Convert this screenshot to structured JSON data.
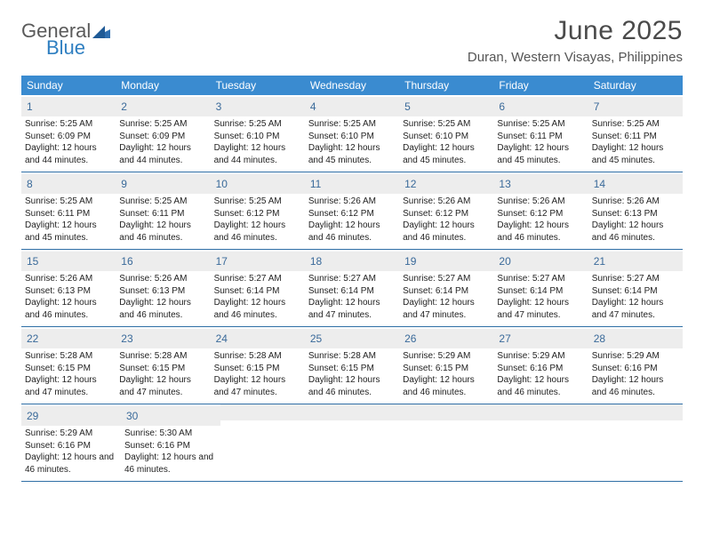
{
  "logo": {
    "text1": "General",
    "text2": "Blue"
  },
  "title": "June 2025",
  "location": "Duran, Western Visayas, Philippines",
  "colors": {
    "header_bg": "#3a8bd0",
    "daynum_bg": "#ededed",
    "daynum_color": "#3a6a9a",
    "week_border": "#2f6fa6"
  },
  "weekdays": [
    "Sunday",
    "Monday",
    "Tuesday",
    "Wednesday",
    "Thursday",
    "Friday",
    "Saturday"
  ],
  "weeks": [
    [
      {
        "n": "1",
        "sr": "5:25 AM",
        "ss": "6:09 PM",
        "dl": "12 hours and 44 minutes."
      },
      {
        "n": "2",
        "sr": "5:25 AM",
        "ss": "6:09 PM",
        "dl": "12 hours and 44 minutes."
      },
      {
        "n": "3",
        "sr": "5:25 AM",
        "ss": "6:10 PM",
        "dl": "12 hours and 44 minutes."
      },
      {
        "n": "4",
        "sr": "5:25 AM",
        "ss": "6:10 PM",
        "dl": "12 hours and 45 minutes."
      },
      {
        "n": "5",
        "sr": "5:25 AM",
        "ss": "6:10 PM",
        "dl": "12 hours and 45 minutes."
      },
      {
        "n": "6",
        "sr": "5:25 AM",
        "ss": "6:11 PM",
        "dl": "12 hours and 45 minutes."
      },
      {
        "n": "7",
        "sr": "5:25 AM",
        "ss": "6:11 PM",
        "dl": "12 hours and 45 minutes."
      }
    ],
    [
      {
        "n": "8",
        "sr": "5:25 AM",
        "ss": "6:11 PM",
        "dl": "12 hours and 45 minutes."
      },
      {
        "n": "9",
        "sr": "5:25 AM",
        "ss": "6:11 PM",
        "dl": "12 hours and 46 minutes."
      },
      {
        "n": "10",
        "sr": "5:25 AM",
        "ss": "6:12 PM",
        "dl": "12 hours and 46 minutes."
      },
      {
        "n": "11",
        "sr": "5:26 AM",
        "ss": "6:12 PM",
        "dl": "12 hours and 46 minutes."
      },
      {
        "n": "12",
        "sr": "5:26 AM",
        "ss": "6:12 PM",
        "dl": "12 hours and 46 minutes."
      },
      {
        "n": "13",
        "sr": "5:26 AM",
        "ss": "6:12 PM",
        "dl": "12 hours and 46 minutes."
      },
      {
        "n": "14",
        "sr": "5:26 AM",
        "ss": "6:13 PM",
        "dl": "12 hours and 46 minutes."
      }
    ],
    [
      {
        "n": "15",
        "sr": "5:26 AM",
        "ss": "6:13 PM",
        "dl": "12 hours and 46 minutes."
      },
      {
        "n": "16",
        "sr": "5:26 AM",
        "ss": "6:13 PM",
        "dl": "12 hours and 46 minutes."
      },
      {
        "n": "17",
        "sr": "5:27 AM",
        "ss": "6:14 PM",
        "dl": "12 hours and 46 minutes."
      },
      {
        "n": "18",
        "sr": "5:27 AM",
        "ss": "6:14 PM",
        "dl": "12 hours and 47 minutes."
      },
      {
        "n": "19",
        "sr": "5:27 AM",
        "ss": "6:14 PM",
        "dl": "12 hours and 47 minutes."
      },
      {
        "n": "20",
        "sr": "5:27 AM",
        "ss": "6:14 PM",
        "dl": "12 hours and 47 minutes."
      },
      {
        "n": "21",
        "sr": "5:27 AM",
        "ss": "6:14 PM",
        "dl": "12 hours and 47 minutes."
      }
    ],
    [
      {
        "n": "22",
        "sr": "5:28 AM",
        "ss": "6:15 PM",
        "dl": "12 hours and 47 minutes."
      },
      {
        "n": "23",
        "sr": "5:28 AM",
        "ss": "6:15 PM",
        "dl": "12 hours and 47 minutes."
      },
      {
        "n": "24",
        "sr": "5:28 AM",
        "ss": "6:15 PM",
        "dl": "12 hours and 47 minutes."
      },
      {
        "n": "25",
        "sr": "5:28 AM",
        "ss": "6:15 PM",
        "dl": "12 hours and 46 minutes."
      },
      {
        "n": "26",
        "sr": "5:29 AM",
        "ss": "6:15 PM",
        "dl": "12 hours and 46 minutes."
      },
      {
        "n": "27",
        "sr": "5:29 AM",
        "ss": "6:16 PM",
        "dl": "12 hours and 46 minutes."
      },
      {
        "n": "28",
        "sr": "5:29 AM",
        "ss": "6:16 PM",
        "dl": "12 hours and 46 minutes."
      }
    ],
    [
      {
        "n": "29",
        "sr": "5:29 AM",
        "ss": "6:16 PM",
        "dl": "12 hours and 46 minutes."
      },
      {
        "n": "30",
        "sr": "5:30 AM",
        "ss": "6:16 PM",
        "dl": "12 hours and 46 minutes."
      },
      null,
      null,
      null,
      null,
      null
    ]
  ],
  "labels": {
    "sunrise": "Sunrise: ",
    "sunset": "Sunset: ",
    "daylight": "Daylight: "
  }
}
